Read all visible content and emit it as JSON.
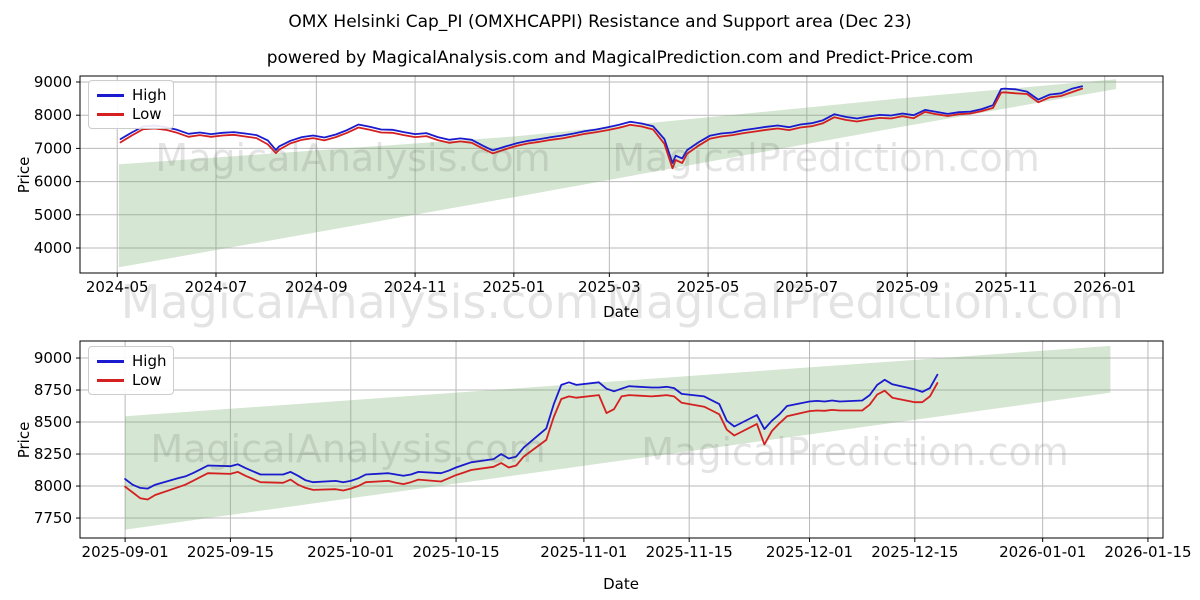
{
  "title": "OMX Helsinki Cap_PI (OMXHCAPPI) Resistance and Support area (Dec 23)",
  "subtitle": "powered by MagicalAnalysis.com and MagicalPrediction.com and Predict-Price.com",
  "watermarks": {
    "left": "MagicalAnalysis.com",
    "right": "MagicalPrediction.com"
  },
  "chart_data": [
    {
      "type": "line",
      "name": "overview-chart",
      "xlabel": "Date",
      "ylabel": "Price",
      "legend": [
        "High",
        "Low"
      ],
      "high_color": "#1a1ace",
      "low_color": "#d42020",
      "grid": true,
      "ylim": [
        3247,
        9181
      ],
      "x_domain": [
        "2024-04-08",
        "2026-02-06"
      ],
      "yticks": [
        {
          "v": 4000,
          "t": "4000"
        },
        {
          "v": 5000,
          "t": "5000"
        },
        {
          "v": 6000,
          "t": "6000"
        },
        {
          "v": 7000,
          "t": "7000"
        },
        {
          "v": 8000,
          "t": "8000"
        },
        {
          "v": 9000,
          "t": "9000"
        }
      ],
      "xticks": [
        {
          "d": "2024-05-01",
          "label": "2024-05"
        },
        {
          "d": "2024-07-01",
          "label": "2024-07"
        },
        {
          "d": "2024-09-01",
          "label": "2024-09"
        },
        {
          "d": "2024-11-01",
          "label": "2024-11"
        },
        {
          "d": "2025-01-01",
          "label": "2025-01"
        },
        {
          "d": "2025-03-01",
          "label": "2025-03"
        },
        {
          "d": "2025-05-01",
          "label": "2025-05"
        },
        {
          "d": "2025-07-01",
          "label": "2025-07"
        },
        {
          "d": "2025-09-01",
          "label": "2025-09"
        },
        {
          "d": "2025-11-01",
          "label": "2025-11"
        },
        {
          "d": "2026-01-01",
          "label": "2026-01"
        }
      ],
      "band": {
        "color": "#74ad6b",
        "opacity": 0.3,
        "top": [
          [
            "2024-05-02",
            6520
          ],
          [
            "2025-01-01",
            7360
          ],
          [
            "2025-08-26",
            8500
          ],
          [
            "2026-01-08",
            9085
          ]
        ],
        "bottom": [
          [
            "2024-05-02",
            3420
          ],
          [
            "2025-01-01",
            5530
          ],
          [
            "2025-08-26",
            7630
          ],
          [
            "2026-01-08",
            8790
          ]
        ]
      },
      "rows": [
        [
          "2024-05-03",
          7280,
          7180
        ],
        [
          "2024-05-10",
          7480,
          7390
        ],
        [
          "2024-05-17",
          7660,
          7580
        ],
        [
          "2024-05-24",
          7690,
          7600
        ],
        [
          "2024-05-31",
          7640,
          7560
        ],
        [
          "2024-06-07",
          7560,
          7470
        ],
        [
          "2024-06-14",
          7440,
          7350
        ],
        [
          "2024-06-21",
          7480,
          7400
        ],
        [
          "2024-06-28",
          7430,
          7350
        ],
        [
          "2024-07-05",
          7470,
          7390
        ],
        [
          "2024-07-12",
          7490,
          7410
        ],
        [
          "2024-07-19",
          7450,
          7360
        ],
        [
          "2024-07-26",
          7400,
          7310
        ],
        [
          "2024-08-02",
          7240,
          7120
        ],
        [
          "2024-08-07",
          6950,
          6860
        ],
        [
          "2024-08-09",
          7060,
          6960
        ],
        [
          "2024-08-16",
          7230,
          7150
        ],
        [
          "2024-08-23",
          7340,
          7260
        ],
        [
          "2024-08-30",
          7390,
          7310
        ],
        [
          "2024-09-06",
          7330,
          7240
        ],
        [
          "2024-09-13",
          7420,
          7340
        ],
        [
          "2024-09-20",
          7550,
          7470
        ],
        [
          "2024-09-27",
          7720,
          7630
        ],
        [
          "2024-10-04",
          7650,
          7560
        ],
        [
          "2024-10-11",
          7570,
          7480
        ],
        [
          "2024-10-18",
          7560,
          7470
        ],
        [
          "2024-10-25",
          7490,
          7400
        ],
        [
          "2024-11-01",
          7430,
          7340
        ],
        [
          "2024-11-08",
          7460,
          7370
        ],
        [
          "2024-11-15",
          7340,
          7250
        ],
        [
          "2024-11-22",
          7260,
          7170
        ],
        [
          "2024-11-29",
          7300,
          7210
        ],
        [
          "2024-12-06",
          7260,
          7170
        ],
        [
          "2024-12-13",
          7080,
          6990
        ],
        [
          "2024-12-19",
          6940,
          6850
        ],
        [
          "2024-12-27",
          7060,
          6980
        ],
        [
          "2025-01-03",
          7160,
          7080
        ],
        [
          "2025-01-10",
          7230,
          7150
        ],
        [
          "2025-01-17",
          7280,
          7200
        ],
        [
          "2025-01-24",
          7340,
          7260
        ],
        [
          "2025-01-31",
          7390,
          7300
        ],
        [
          "2025-02-07",
          7450,
          7370
        ],
        [
          "2025-02-14",
          7520,
          7440
        ],
        [
          "2025-02-21",
          7570,
          7490
        ],
        [
          "2025-02-28",
          7640,
          7550
        ],
        [
          "2025-03-07",
          7710,
          7620
        ],
        [
          "2025-03-14",
          7800,
          7710
        ],
        [
          "2025-03-21",
          7750,
          7660
        ],
        [
          "2025-03-28",
          7670,
          7570
        ],
        [
          "2025-04-04",
          7280,
          7140
        ],
        [
          "2025-04-09",
          6560,
          6400
        ],
        [
          "2025-04-11",
          6780,
          6650
        ],
        [
          "2025-04-15",
          6700,
          6560
        ],
        [
          "2025-04-18",
          6950,
          6840
        ],
        [
          "2025-04-25",
          7180,
          7080
        ],
        [
          "2025-05-02",
          7380,
          7290
        ],
        [
          "2025-05-09",
          7450,
          7360
        ],
        [
          "2025-05-16",
          7480,
          7400
        ],
        [
          "2025-05-23",
          7550,
          7460
        ],
        [
          "2025-05-30",
          7600,
          7510
        ],
        [
          "2025-06-06",
          7650,
          7560
        ],
        [
          "2025-06-13",
          7690,
          7600
        ],
        [
          "2025-06-20",
          7640,
          7550
        ],
        [
          "2025-06-27",
          7720,
          7630
        ],
        [
          "2025-07-04",
          7760,
          7670
        ],
        [
          "2025-07-11",
          7850,
          7760
        ],
        [
          "2025-07-18",
          8030,
          7940
        ],
        [
          "2025-07-25",
          7950,
          7860
        ],
        [
          "2025-08-01",
          7900,
          7810
        ],
        [
          "2025-08-08",
          7960,
          7870
        ],
        [
          "2025-08-15",
          8010,
          7920
        ],
        [
          "2025-08-22",
          7990,
          7900
        ],
        [
          "2025-08-29",
          8050,
          7970
        ],
        [
          "2025-09-05",
          8000,
          7910
        ],
        [
          "2025-09-12",
          8160,
          8100
        ],
        [
          "2025-09-19",
          8100,
          8030
        ],
        [
          "2025-09-26",
          8040,
          7975
        ],
        [
          "2025-10-03",
          8090,
          8030
        ],
        [
          "2025-10-10",
          8110,
          8050
        ],
        [
          "2025-10-17",
          8185,
          8125
        ],
        [
          "2025-10-24",
          8300,
          8220
        ],
        [
          "2025-10-29",
          8790,
          8680
        ],
        [
          "2025-10-31",
          8800,
          8690
        ],
        [
          "2025-11-07",
          8780,
          8660
        ],
        [
          "2025-11-14",
          8710,
          8640
        ],
        [
          "2025-11-21",
          8470,
          8390
        ],
        [
          "2025-11-28",
          8620,
          8540
        ],
        [
          "2025-12-05",
          8660,
          8580
        ],
        [
          "2025-12-12",
          8800,
          8700
        ],
        [
          "2025-12-18",
          8870,
          8800
        ]
      ]
    },
    {
      "type": "line",
      "name": "detail-chart",
      "xlabel": "Date",
      "ylabel": "Price",
      "legend": [
        "High",
        "Low"
      ],
      "high_color": "#1a1ace",
      "low_color": "#d42020",
      "grid": true,
      "ylim": [
        7594,
        9133
      ],
      "x_domain": [
        "2025-08-26",
        "2026-01-17"
      ],
      "yticks": [
        {
          "v": 7750,
          "t": "7750"
        },
        {
          "v": 8000,
          "t": "8000"
        },
        {
          "v": 8250,
          "t": "8250"
        },
        {
          "v": 8500,
          "t": "8500"
        },
        {
          "v": 8750,
          "t": "8750"
        },
        {
          "v": 9000,
          "t": "9000"
        }
      ],
      "xticks": [
        {
          "d": "2025-09-01",
          "label": "2025-09-01"
        },
        {
          "d": "2025-09-15",
          "label": "2025-09-15"
        },
        {
          "d": "2025-10-01",
          "label": "2025-10-01"
        },
        {
          "d": "2025-10-15",
          "label": "2025-10-15"
        },
        {
          "d": "2025-11-01",
          "label": "2025-11-01"
        },
        {
          "d": "2025-11-15",
          "label": "2025-11-15"
        },
        {
          "d": "2025-12-01",
          "label": "2025-12-01"
        },
        {
          "d": "2025-12-15",
          "label": "2025-12-15"
        },
        {
          "d": "2026-01-01",
          "label": "2026-01-01"
        },
        {
          "d": "2026-01-15",
          "label": "2026-01-15"
        }
      ],
      "band": {
        "color": "#74ad6b",
        "opacity": 0.3,
        "top": [
          [
            "2025-09-01",
            8545
          ],
          [
            "2026-01-10",
            9095
          ]
        ],
        "bottom": [
          [
            "2025-09-01",
            7660
          ],
          [
            "2026-01-10",
            8730
          ]
        ]
      },
      "rows": [
        [
          "2025-09-01",
          8055,
          7995
        ],
        [
          "2025-09-02",
          8010,
          7950
        ],
        [
          "2025-09-03",
          7985,
          7905
        ],
        [
          "2025-09-04",
          7980,
          7895
        ],
        [
          "2025-09-05",
          8010,
          7930
        ],
        [
          "2025-09-08",
          8060,
          7990
        ],
        [
          "2025-09-09",
          8075,
          8010
        ],
        [
          "2025-09-10",
          8100,
          8040
        ],
        [
          "2025-09-11",
          8130,
          8070
        ],
        [
          "2025-09-12",
          8160,
          8100
        ],
        [
          "2025-09-15",
          8155,
          8095
        ],
        [
          "2025-09-16",
          8170,
          8110
        ],
        [
          "2025-09-17",
          8140,
          8080
        ],
        [
          "2025-09-18",
          8115,
          8055
        ],
        [
          "2025-09-19",
          8090,
          8030
        ],
        [
          "2025-09-22",
          8090,
          8025
        ],
        [
          "2025-09-23",
          8110,
          8050
        ],
        [
          "2025-09-24",
          8080,
          8010
        ],
        [
          "2025-09-25",
          8045,
          7985
        ],
        [
          "2025-09-26",
          8030,
          7970
        ],
        [
          "2025-09-29",
          8040,
          7975
        ],
        [
          "2025-09-30",
          8030,
          7965
        ],
        [
          "2025-10-01",
          8040,
          7980
        ],
        [
          "2025-10-02",
          8060,
          8000
        ],
        [
          "2025-10-03",
          8090,
          8030
        ],
        [
          "2025-10-06",
          8100,
          8040
        ],
        [
          "2025-10-07",
          8090,
          8025
        ],
        [
          "2025-10-08",
          8080,
          8015
        ],
        [
          "2025-10-09",
          8090,
          8030
        ],
        [
          "2025-10-10",
          8110,
          8050
        ],
        [
          "2025-10-13",
          8100,
          8035
        ],
        [
          "2025-10-14",
          8120,
          8060
        ],
        [
          "2025-10-15",
          8145,
          8085
        ],
        [
          "2025-10-16",
          8165,
          8105
        ],
        [
          "2025-10-17",
          8185,
          8125
        ],
        [
          "2025-10-20",
          8210,
          8150
        ],
        [
          "2025-10-21",
          8250,
          8180
        ],
        [
          "2025-10-22",
          8215,
          8145
        ],
        [
          "2025-10-23",
          8230,
          8160
        ],
        [
          "2025-10-24",
          8300,
          8230
        ],
        [
          "2025-10-27",
          8450,
          8360
        ],
        [
          "2025-10-28",
          8640,
          8540
        ],
        [
          "2025-10-29",
          8790,
          8680
        ],
        [
          "2025-10-30",
          8810,
          8700
        ],
        [
          "2025-10-31",
          8790,
          8690
        ],
        [
          "2025-11-03",
          8810,
          8710
        ],
        [
          "2025-11-04",
          8760,
          8570
        ],
        [
          "2025-11-05",
          8740,
          8600
        ],
        [
          "2025-11-06",
          8760,
          8700
        ],
        [
          "2025-11-07",
          8780,
          8710
        ],
        [
          "2025-11-10",
          8770,
          8700
        ],
        [
          "2025-11-11",
          8770,
          8705
        ],
        [
          "2025-11-12",
          8775,
          8710
        ],
        [
          "2025-11-13",
          8765,
          8700
        ],
        [
          "2025-11-14",
          8720,
          8650
        ],
        [
          "2025-11-17",
          8700,
          8620
        ],
        [
          "2025-11-18",
          8670,
          8590
        ],
        [
          "2025-11-19",
          8640,
          8560
        ],
        [
          "2025-11-20",
          8510,
          8440
        ],
        [
          "2025-11-21",
          8465,
          8395
        ],
        [
          "2025-11-24",
          8555,
          8485
        ],
        [
          "2025-11-25",
          8445,
          8325
        ],
        [
          "2025-11-26",
          8510,
          8430
        ],
        [
          "2025-11-27",
          8560,
          8490
        ],
        [
          "2025-11-28",
          8625,
          8545
        ],
        [
          "2025-12-01",
          8660,
          8585
        ],
        [
          "2025-12-02",
          8665,
          8590
        ],
        [
          "2025-12-03",
          8660,
          8588
        ],
        [
          "2025-12-04",
          8668,
          8595
        ],
        [
          "2025-12-05",
          8660,
          8590
        ],
        [
          "2025-12-08",
          8668,
          8590
        ],
        [
          "2025-12-09",
          8710,
          8635
        ],
        [
          "2025-12-10",
          8790,
          8715
        ],
        [
          "2025-12-11",
          8830,
          8745
        ],
        [
          "2025-12-12",
          8795,
          8690
        ],
        [
          "2025-12-15",
          8755,
          8655
        ],
        [
          "2025-12-16",
          8735,
          8655
        ],
        [
          "2025-12-17",
          8765,
          8700
        ],
        [
          "2025-12-18",
          8870,
          8805
        ]
      ]
    }
  ]
}
